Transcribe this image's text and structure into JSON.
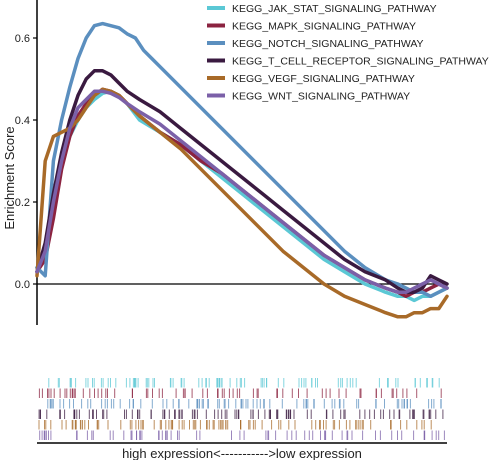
{
  "chart_data": {
    "type": "line",
    "ylabel": "Enrichment Score",
    "xlabel": "high expression<----------->low expression",
    "xlim": [
      0,
      100
    ],
    "ylim": [
      -0.11,
      0.67
    ],
    "yticks": [
      0.0,
      0.2,
      0.4,
      0.6
    ],
    "ytick_labels": [
      "0.0",
      "0.2",
      "0.4",
      "0.6"
    ],
    "zero_line": true,
    "grid": false,
    "legend_position": "top-right",
    "series": [
      {
        "name": "KEGG_JAK_STAT_SIGNALING_PATHWAY",
        "color": "#5bc8d5",
        "x": [
          0,
          2,
          4,
          6,
          8,
          10,
          12,
          14,
          16,
          18,
          20,
          22,
          25,
          30,
          35,
          40,
          45,
          50,
          55,
          60,
          65,
          70,
          75,
          80,
          85,
          88,
          90,
          92,
          94,
          96,
          98,
          100
        ],
        "y": [
          0.04,
          0.08,
          0.2,
          0.3,
          0.36,
          0.4,
          0.43,
          0.45,
          0.465,
          0.47,
          0.46,
          0.44,
          0.4,
          0.37,
          0.34,
          0.3,
          0.26,
          0.22,
          0.18,
          0.14,
          0.1,
          0.06,
          0.03,
          0.0,
          -0.02,
          -0.03,
          -0.03,
          -0.04,
          -0.03,
          -0.03,
          -0.02,
          -0.01
        ]
      },
      {
        "name": "KEGG_MAPK_SIGNALING_PATHWAY",
        "color": "#8b2340",
        "x": [
          0,
          2,
          4,
          6,
          8,
          10,
          12,
          14,
          16,
          18,
          20,
          22,
          25,
          30,
          35,
          40,
          45,
          50,
          55,
          60,
          65,
          70,
          75,
          80,
          85,
          88,
          90,
          92,
          94,
          96,
          98,
          100
        ],
        "y": [
          0.03,
          0.06,
          0.16,
          0.28,
          0.36,
          0.41,
          0.44,
          0.46,
          0.475,
          0.47,
          0.46,
          0.44,
          0.41,
          0.37,
          0.34,
          0.3,
          0.27,
          0.23,
          0.19,
          0.15,
          0.11,
          0.07,
          0.04,
          0.01,
          -0.01,
          -0.02,
          -0.03,
          -0.02,
          -0.02,
          -0.01,
          0.0,
          -0.01
        ]
      },
      {
        "name": "KEGG_NOTCH_SIGNALING_PATHWAY",
        "color": "#5b8fbf",
        "x": [
          0,
          2,
          4,
          6,
          8,
          10,
          12,
          14,
          16,
          18,
          20,
          22,
          24,
          26,
          28,
          30,
          35,
          40,
          45,
          50,
          55,
          60,
          65,
          70,
          75,
          80,
          85,
          88,
          90,
          92,
          94,
          96,
          98,
          100
        ],
        "y": [
          0.04,
          0.02,
          0.3,
          0.4,
          0.48,
          0.55,
          0.6,
          0.63,
          0.635,
          0.63,
          0.625,
          0.61,
          0.6,
          0.57,
          0.55,
          0.53,
          0.48,
          0.43,
          0.38,
          0.33,
          0.28,
          0.23,
          0.18,
          0.13,
          0.08,
          0.04,
          0.01,
          0.0,
          -0.01,
          -0.02,
          -0.02,
          -0.03,
          -0.02,
          -0.01
        ]
      },
      {
        "name": "KEGG_T_CELL_RECEPTOR_SIGNALING_PATHWAY",
        "color": "#3a1a40",
        "x": [
          0,
          2,
          4,
          6,
          8,
          10,
          12,
          14,
          16,
          18,
          20,
          22,
          25,
          30,
          35,
          40,
          45,
          50,
          55,
          60,
          65,
          70,
          75,
          80,
          85,
          88,
          90,
          92,
          94,
          96,
          98,
          100
        ],
        "y": [
          0.03,
          0.1,
          0.22,
          0.32,
          0.4,
          0.46,
          0.5,
          0.52,
          0.52,
          0.51,
          0.49,
          0.47,
          0.45,
          0.42,
          0.38,
          0.34,
          0.3,
          0.26,
          0.22,
          0.18,
          0.14,
          0.1,
          0.06,
          0.03,
          0.01,
          -0.01,
          -0.02,
          -0.02,
          -0.01,
          0.02,
          0.01,
          0.0
        ]
      },
      {
        "name": "KEGG_VEGF_SIGNALING_PATHWAY",
        "color": "#a86a28",
        "x": [
          0,
          2,
          4,
          6,
          8,
          10,
          12,
          14,
          16,
          18,
          20,
          22,
          25,
          30,
          35,
          40,
          45,
          50,
          55,
          60,
          65,
          70,
          75,
          80,
          85,
          88,
          90,
          92,
          94,
          96,
          98,
          100
        ],
        "y": [
          0.02,
          0.3,
          0.36,
          0.37,
          0.38,
          0.4,
          0.43,
          0.46,
          0.475,
          0.47,
          0.46,
          0.44,
          0.41,
          0.37,
          0.33,
          0.28,
          0.23,
          0.18,
          0.13,
          0.08,
          0.04,
          0.0,
          -0.03,
          -0.05,
          -0.07,
          -0.08,
          -0.08,
          -0.07,
          -0.07,
          -0.06,
          -0.06,
          -0.03
        ]
      },
      {
        "name": "KEGG_WNT_SIGNALING_PATHWAY",
        "color": "#7b60a8",
        "x": [
          0,
          2,
          4,
          6,
          8,
          10,
          12,
          14,
          16,
          18,
          20,
          22,
          25,
          30,
          35,
          40,
          45,
          50,
          55,
          60,
          65,
          70,
          75,
          80,
          85,
          88,
          90,
          92,
          94,
          96,
          98,
          100
        ],
        "y": [
          0.03,
          0.08,
          0.2,
          0.3,
          0.38,
          0.43,
          0.45,
          0.47,
          0.47,
          0.465,
          0.455,
          0.44,
          0.42,
          0.39,
          0.35,
          0.31,
          0.27,
          0.23,
          0.19,
          0.15,
          0.11,
          0.07,
          0.04,
          0.01,
          -0.01,
          -0.02,
          -0.02,
          -0.01,
          0.0,
          0.01,
          0.0,
          -0.01
        ]
      }
    ]
  }
}
